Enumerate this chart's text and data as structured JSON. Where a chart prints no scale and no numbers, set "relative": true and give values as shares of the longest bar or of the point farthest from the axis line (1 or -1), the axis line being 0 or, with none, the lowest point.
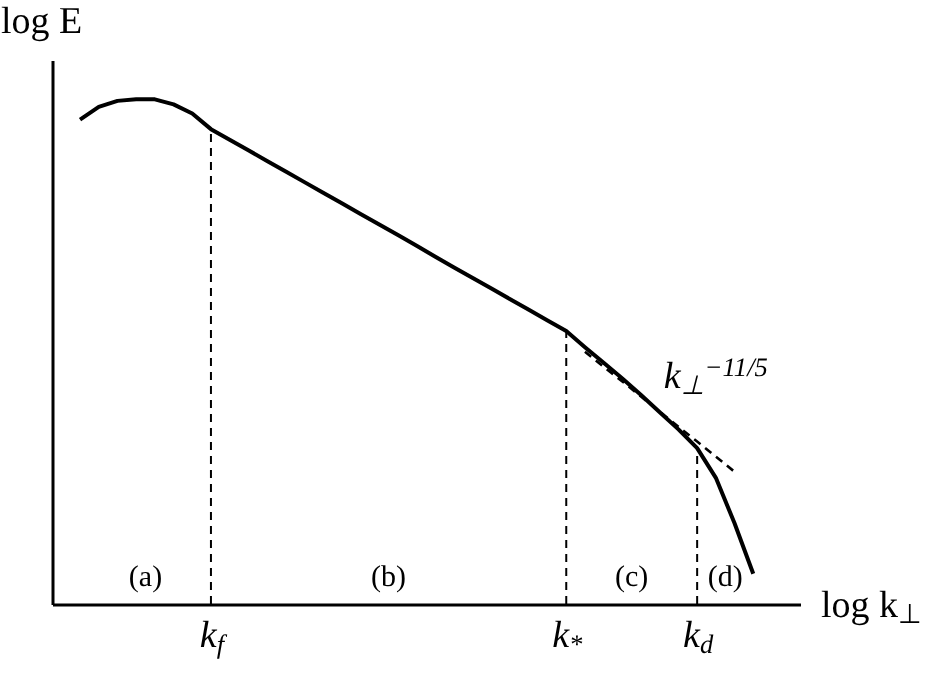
{
  "chart_data": {
    "type": "line",
    "relative": true,
    "xlabel": "log k$_{⊥}$",
    "ylabel": "log E",
    "categories": [
      null,
      null,
      null,
      null,
      null,
      null,
      null,
      null,
      "k$_{f}$",
      null,
      null,
      null,
      null,
      null,
      null,
      null,
      null,
      null,
      null,
      null,
      null,
      null,
      null,
      null,
      null,
      null,
      null,
      "k$_{*}$",
      null,
      null,
      null,
      null,
      null,
      null,
      "k$_{d}$",
      null,
      null,
      null,
      null,
      null
    ],
    "series": [
      {
        "color": "#000000",
        "line_style": "solid",
        "values": [
          null,
          0.96,
          0.985,
          0.997,
          1.0,
          1.0,
          0.99,
          0.972,
          0.941,
          0.92,
          0.899,
          0.878,
          0.857,
          0.836,
          0.815,
          0.794,
          0.773,
          0.752,
          0.731,
          0.71,
          0.688,
          0.667,
          0.646,
          0.625,
          0.604,
          0.583,
          0.562,
          0.541,
          0.509,
          0.478,
          0.447,
          0.414,
          0.38,
          0.346,
          0.309,
          0.25,
          0.16,
          0.06,
          null,
          null
        ]
      },
      {
        "type": "line",
        "color": "#000000",
        "line_style": "dashed",
        "values": [
          null,
          null,
          null,
          null,
          null,
          null,
          null,
          null,
          null,
          null,
          null,
          null,
          null,
          null,
          null,
          null,
          null,
          null,
          null,
          null,
          null,
          null,
          null,
          null,
          null,
          null,
          null,
          null,
          0.5,
          0.47,
          0.441,
          0.411,
          0.381,
          0.351,
          0.322,
          0.292,
          0.262,
          null,
          null,
          null
        ]
      }
    ],
    "ref_lines": [
      {
        "axis": "x",
        "value": "k$_{f}$",
        "line_style": "dashed",
        "color": "#000000"
      },
      {
        "axis": "x",
        "value": "k$_{*}$",
        "line_style": "dashed",
        "color": "#000000"
      },
      {
        "axis": "x",
        "value": "k$_{d}$",
        "line_style": "dashed",
        "color": "#000000"
      }
    ],
    "annotations": [
      "(a)",
      "(b)",
      "(c)",
      "(d)",
      "k$_{⊥}$$^{−11/5}$"
    ],
    "marker": "none"
  }
}
